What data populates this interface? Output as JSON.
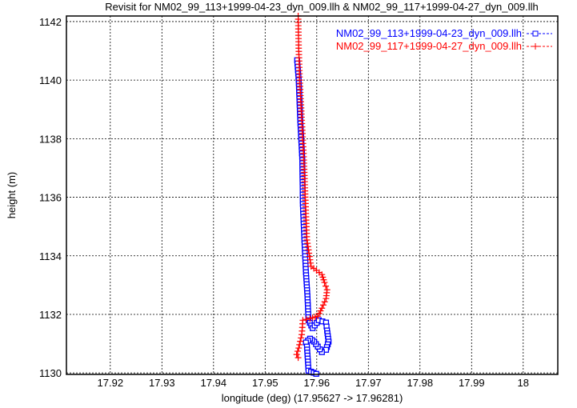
{
  "chart_data": {
    "type": "line",
    "title": "Revisit for NM02_99_113+1999-04-23_dyn_009.llh & NM02_99_117+1999-04-27_dyn_009.llh",
    "xlabel": "longitude (deg) (17.95627 -> 17.96281)",
    "ylabel": "height (m)",
    "xlim": [
      17.9115,
      18.0067
    ],
    "ylim": [
      1129.95,
      1142.19
    ],
    "xticks": [
      "17.92",
      "17.93",
      "17.94",
      "17.95",
      "17.96",
      "17.97",
      "17.98",
      "17.99",
      "18"
    ],
    "xtick_values": [
      17.92,
      17.93,
      17.94,
      17.95,
      17.96,
      17.97,
      17.98,
      17.99,
      18.0
    ],
    "yticks": [
      "1130",
      "1132",
      "1134",
      "1136",
      "1138",
      "1140",
      "1142"
    ],
    "ytick_values": [
      1130,
      1132,
      1134,
      1136,
      1138,
      1140,
      1142
    ],
    "grid": true,
    "legend_position": "top-right",
    "series": [
      {
        "name": "NM02_99_113+1999-04-23_dyn_009.llh",
        "color": "#0000ff",
        "marker": "square",
        "x": [
          17.9562,
          17.9565,
          17.9568,
          17.9572,
          17.9573,
          17.9576,
          17.9579,
          17.9582,
          17.9584,
          17.9592,
          17.9604,
          17.9618,
          17.962,
          17.9623,
          17.9618,
          17.961,
          17.9602,
          17.9595,
          17.9587,
          17.9579,
          17.9581,
          17.9584,
          17.9599
        ],
        "y": [
          1140.68,
          1140.0,
          1138.63,
          1137.27,
          1135.77,
          1134.54,
          1133.44,
          1132.62,
          1131.8,
          1131.53,
          1131.8,
          1131.72,
          1131.45,
          1131.07,
          1130.79,
          1130.71,
          1130.9,
          1131.07,
          1131.17,
          1131.04,
          1130.9,
          1130.08,
          1129.97
        ]
      },
      {
        "name": "NM02_99_117+1999-04-27_dyn_009.llh",
        "color": "#ff0000",
        "marker": "plus",
        "x": [
          17.9564,
          17.9565,
          17.9567,
          17.9571,
          17.9575,
          17.9578,
          17.9581,
          17.9589,
          17.961,
          17.9615,
          17.962,
          17.9618,
          17.961,
          17.9602,
          17.9587,
          17.9573,
          17.9571,
          17.9565,
          17.9561,
          17.9564
        ],
        "y": [
          1142.19,
          1141.09,
          1140.0,
          1138.63,
          1137.27,
          1135.9,
          1134.54,
          1133.64,
          1133.36,
          1133.09,
          1132.84,
          1132.54,
          1132.21,
          1131.94,
          1131.86,
          1131.8,
          1131.31,
          1130.85,
          1130.63,
          1130.52
        ]
      }
    ]
  }
}
